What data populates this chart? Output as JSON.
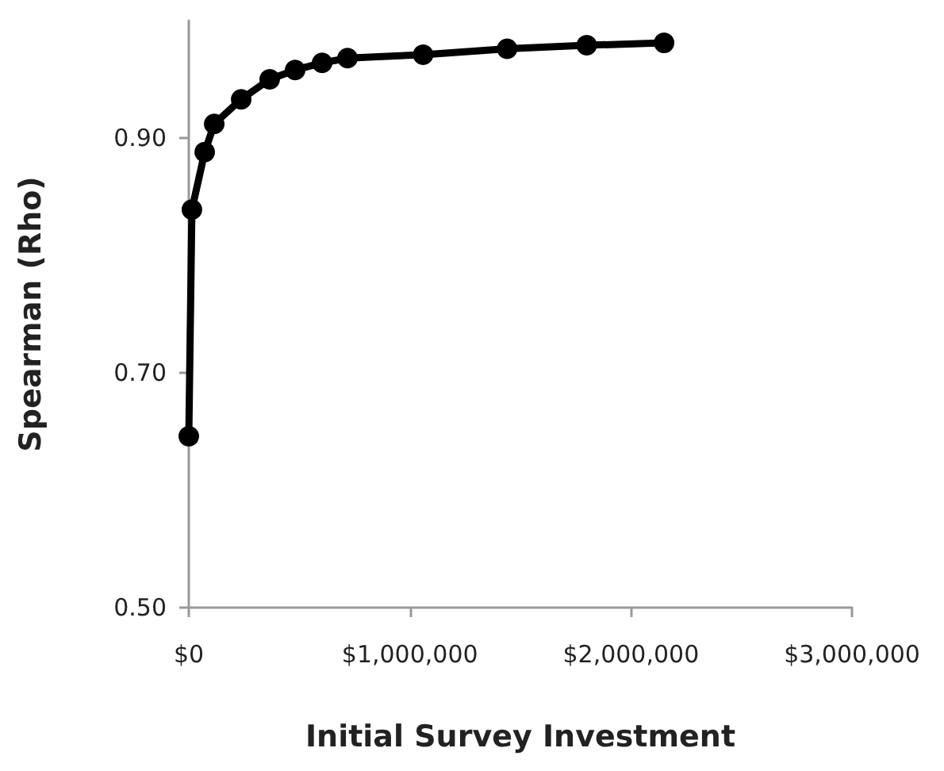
{
  "chart_data": {
    "type": "line",
    "xlabel": "Initial Survey Investment",
    "ylabel": "Spearman (Rho)",
    "x": [
      0,
      14000,
      72000,
      115000,
      237000,
      366000,
      481000,
      603000,
      718000,
      1060000,
      1440000,
      1800000,
      2150000
    ],
    "series": [
      {
        "color": "#000000",
        "values": [
          0.646,
          0.839,
          0.888,
          0.912,
          0.933,
          0.95,
          0.958,
          0.964,
          0.968,
          0.971,
          0.976,
          0.979,
          0.981
        ]
      }
    ],
    "xlim": [
      0,
      3000000
    ],
    "xticks": [
      {
        "value": 0,
        "label": "$0"
      },
      {
        "value": 1000000,
        "label": "$1,000,000"
      },
      {
        "value": 2000000,
        "label": "$2,000,000"
      },
      {
        "value": 3000000,
        "label": "$3,000,000"
      }
    ],
    "ylim": [
      0.5,
      1.0
    ],
    "yticks": [
      {
        "value": 0.5,
        "label": "0.50"
      },
      {
        "value": 0.7,
        "label": "0.70"
      },
      {
        "value": 0.9,
        "label": "0.90"
      }
    ],
    "marker": "circle",
    "line_style": "solid"
  }
}
